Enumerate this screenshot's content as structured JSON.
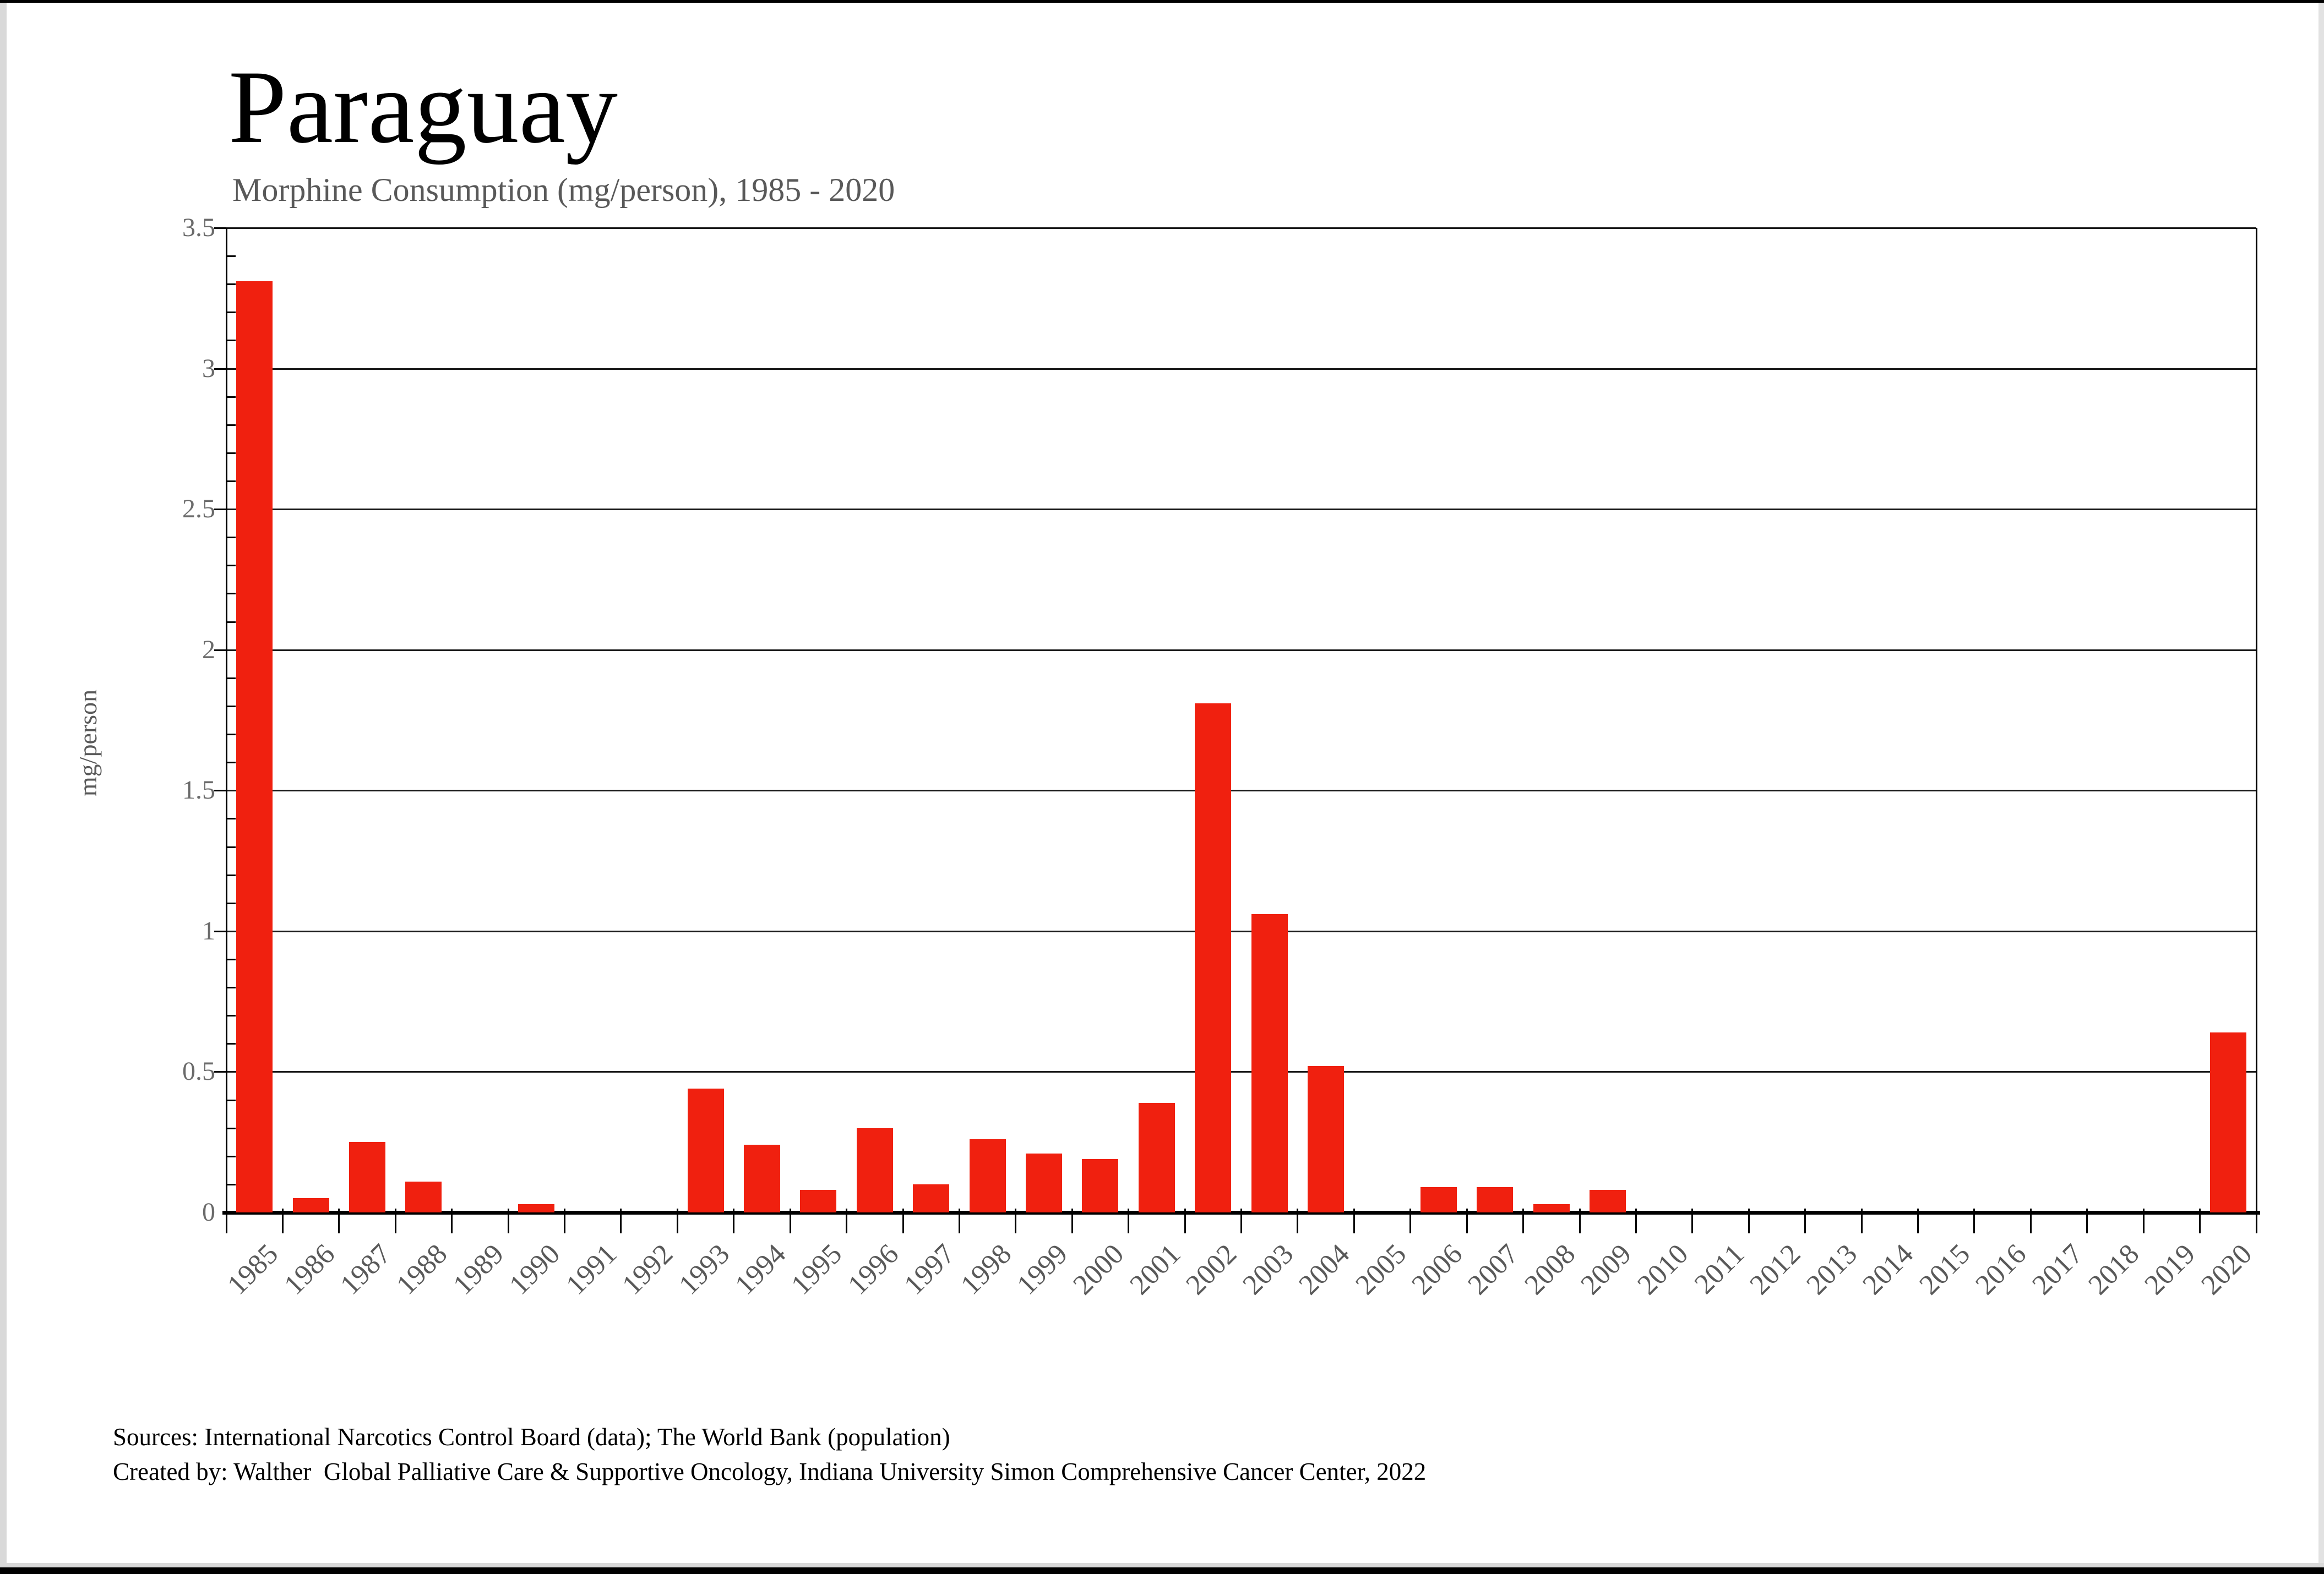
{
  "page": {
    "title": "Paraguay",
    "subtitle": "Morphine Consumption (mg/person), 1985 - 2020",
    "source_line1": "Sources: International Narcotics Control Board (data); The World Bank (population)",
    "source_line2": "Created by: Walther  Global Palliative Care & Supportive Oncology, Indiana University Simon Comprehensive Cancer Center, 2022"
  },
  "colors": {
    "bar": "#f0200f",
    "grid": "#1a1a1a",
    "axis": "#000000",
    "y_tick_text": "#6b6b6b",
    "x_tick_text": "#595959",
    "subtitle_text": "#595959",
    "title_text": "#000000"
  },
  "chart_data": {
    "type": "bar",
    "title": "Paraguay",
    "subtitle": "Morphine Consumption (mg/person), 1985 - 2020",
    "xlabel": "",
    "ylabel": "mg/person",
    "ylim": [
      0,
      3.5
    ],
    "ytick_step": 0.5,
    "y_minor_tick_step": 0.1,
    "grid": true,
    "legend": "none",
    "categories": [
      "1985",
      "1986",
      "1987",
      "1988",
      "1989",
      "1990",
      "1991",
      "1992",
      "1993",
      "1994",
      "1995",
      "1996",
      "1997",
      "1998",
      "1999",
      "2000",
      "2001",
      "2002",
      "2003",
      "2004",
      "2005",
      "2006",
      "2007",
      "2008",
      "2009",
      "2010",
      "2011",
      "2012",
      "2013",
      "2014",
      "2015",
      "2016",
      "2017",
      "2018",
      "2019",
      "2020"
    ],
    "values": [
      3.31,
      0.05,
      0.25,
      0.11,
      0,
      0.03,
      0,
      0,
      0.44,
      0.24,
      0.08,
      0.3,
      0.1,
      0.26,
      0.21,
      0.19,
      0.39,
      1.81,
      1.06,
      0.52,
      0,
      0.09,
      0.09,
      0.03,
      0.08,
      0,
      0,
      0,
      0,
      0,
      0,
      0,
      0,
      0,
      0,
      0.64
    ]
  }
}
